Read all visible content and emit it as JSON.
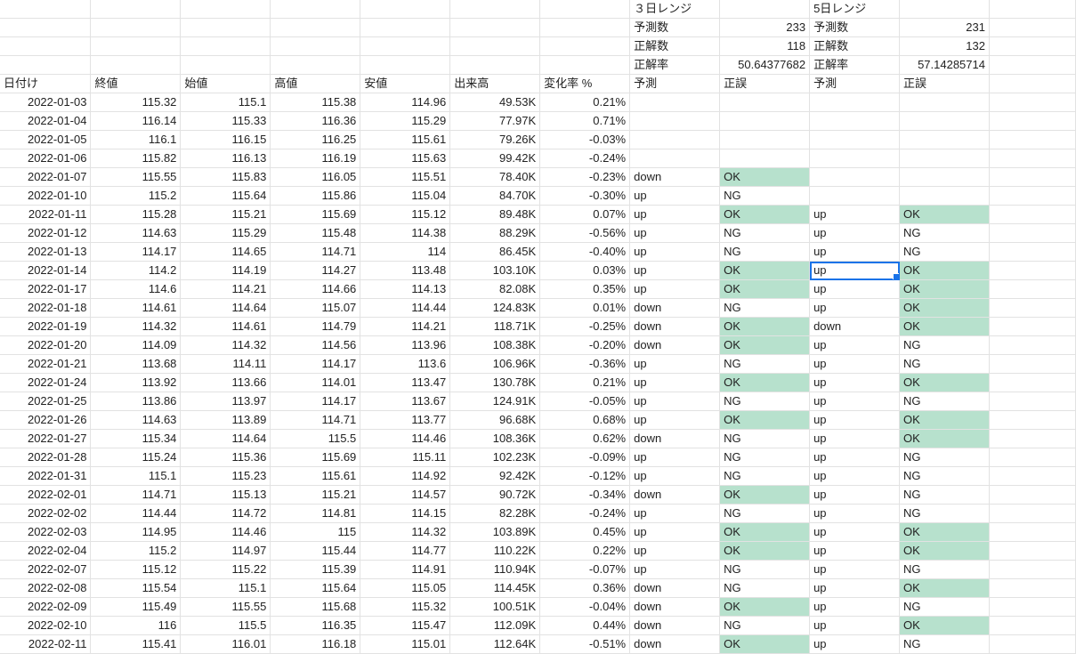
{
  "summary": {
    "range3_title": "３日レンジ",
    "range5_title": "5日レンジ",
    "pred_count_label": "予測数",
    "correct_count_label": "正解数",
    "accuracy_label": "正解率",
    "range3_pred_count": "233",
    "range3_correct_count": "118",
    "range3_accuracy": "50.64377682",
    "range5_pred_count": "231",
    "range5_correct_count": "132",
    "range5_accuracy": "57.14285714"
  },
  "headers": [
    "日付け",
    "終値",
    "始値",
    "高値",
    "安値",
    "出来高",
    "変化率 %",
    "予測",
    "正誤",
    "予測",
    "正誤"
  ],
  "rows": [
    [
      "2022-01-03",
      "115.32",
      "115.1",
      "115.38",
      "114.96",
      "49.53K",
      "0.21%",
      "",
      "",
      "",
      ""
    ],
    [
      "2022-01-04",
      "116.14",
      "115.33",
      "116.36",
      "115.29",
      "77.97K",
      "0.71%",
      "",
      "",
      "",
      ""
    ],
    [
      "2022-01-05",
      "116.1",
      "116.15",
      "116.25",
      "115.61",
      "79.26K",
      "-0.03%",
      "",
      "",
      "",
      ""
    ],
    [
      "2022-01-06",
      "115.82",
      "116.13",
      "116.19",
      "115.63",
      "99.42K",
      "-0.24%",
      "",
      "",
      "",
      ""
    ],
    [
      "2022-01-07",
      "115.55",
      "115.83",
      "116.05",
      "115.51",
      "78.40K",
      "-0.23%",
      "down",
      "OK",
      "",
      ""
    ],
    [
      "2022-01-10",
      "115.2",
      "115.64",
      "115.86",
      "115.04",
      "84.70K",
      "-0.30%",
      "up",
      "NG",
      "",
      ""
    ],
    [
      "2022-01-11",
      "115.28",
      "115.21",
      "115.69",
      "115.12",
      "89.48K",
      "0.07%",
      "up",
      "OK",
      "up",
      "OK"
    ],
    [
      "2022-01-12",
      "114.63",
      "115.29",
      "115.48",
      "114.38",
      "88.29K",
      "-0.56%",
      "up",
      "NG",
      "up",
      "NG"
    ],
    [
      "2022-01-13",
      "114.17",
      "114.65",
      "114.71",
      "114",
      "86.45K",
      "-0.40%",
      "up",
      "NG",
      "up",
      "NG"
    ],
    [
      "2022-01-14",
      "114.2",
      "114.19",
      "114.27",
      "113.48",
      "103.10K",
      "0.03%",
      "up",
      "OK",
      "up",
      "OK"
    ],
    [
      "2022-01-17",
      "114.6",
      "114.21",
      "114.66",
      "114.13",
      "82.08K",
      "0.35%",
      "up",
      "OK",
      "up",
      "OK"
    ],
    [
      "2022-01-18",
      "114.61",
      "114.64",
      "115.07",
      "114.44",
      "124.83K",
      "0.01%",
      "down",
      "NG",
      "up",
      "OK"
    ],
    [
      "2022-01-19",
      "114.32",
      "114.61",
      "114.79",
      "114.21",
      "118.71K",
      "-0.25%",
      "down",
      "OK",
      "down",
      "OK"
    ],
    [
      "2022-01-20",
      "114.09",
      "114.32",
      "114.56",
      "113.96",
      "108.38K",
      "-0.20%",
      "down",
      "OK",
      "up",
      "NG"
    ],
    [
      "2022-01-21",
      "113.68",
      "114.11",
      "114.17",
      "113.6",
      "106.96K",
      "-0.36%",
      "up",
      "NG",
      "up",
      "NG"
    ],
    [
      "2022-01-24",
      "113.92",
      "113.66",
      "114.01",
      "113.47",
      "130.78K",
      "0.21%",
      "up",
      "OK",
      "up",
      "OK"
    ],
    [
      "2022-01-25",
      "113.86",
      "113.97",
      "114.17",
      "113.67",
      "124.91K",
      "-0.05%",
      "up",
      "NG",
      "up",
      "NG"
    ],
    [
      "2022-01-26",
      "114.63",
      "113.89",
      "114.71",
      "113.77",
      "96.68K",
      "0.68%",
      "up",
      "OK",
      "up",
      "OK"
    ],
    [
      "2022-01-27",
      "115.34",
      "114.64",
      "115.5",
      "114.46",
      "108.36K",
      "0.62%",
      "down",
      "NG",
      "up",
      "OK"
    ],
    [
      "2022-01-28",
      "115.24",
      "115.36",
      "115.69",
      "115.11",
      "102.23K",
      "-0.09%",
      "up",
      "NG",
      "up",
      "NG"
    ],
    [
      "2022-01-31",
      "115.1",
      "115.23",
      "115.61",
      "114.92",
      "92.42K",
      "-0.12%",
      "up",
      "NG",
      "up",
      "NG"
    ],
    [
      "2022-02-01",
      "114.71",
      "115.13",
      "115.21",
      "114.57",
      "90.72K",
      "-0.34%",
      "down",
      "OK",
      "up",
      "NG"
    ],
    [
      "2022-02-02",
      "114.44",
      "114.72",
      "114.81",
      "114.15",
      "82.28K",
      "-0.24%",
      "up",
      "NG",
      "up",
      "NG"
    ],
    [
      "2022-02-03",
      "114.95",
      "114.46",
      "115",
      "114.32",
      "103.89K",
      "0.45%",
      "up",
      "OK",
      "up",
      "OK"
    ],
    [
      "2022-02-04",
      "115.2",
      "114.97",
      "115.44",
      "114.77",
      "110.22K",
      "0.22%",
      "up",
      "OK",
      "up",
      "OK"
    ],
    [
      "2022-02-07",
      "115.12",
      "115.22",
      "115.39",
      "114.91",
      "110.94K",
      "-0.07%",
      "up",
      "NG",
      "up",
      "NG"
    ],
    [
      "2022-02-08",
      "115.54",
      "115.1",
      "115.64",
      "115.05",
      "114.45K",
      "0.36%",
      "down",
      "NG",
      "up",
      "OK"
    ],
    [
      "2022-02-09",
      "115.49",
      "115.55",
      "115.68",
      "115.32",
      "100.51K",
      "-0.04%",
      "down",
      "OK",
      "up",
      "NG"
    ],
    [
      "2022-02-10",
      "116",
      "115.5",
      "116.35",
      "115.47",
      "112.09K",
      "0.44%",
      "down",
      "NG",
      "up",
      "OK"
    ],
    [
      "2022-02-11",
      "115.41",
      "116.01",
      "116.18",
      "115.01",
      "112.64K",
      "-0.51%",
      "down",
      "OK",
      "up",
      "NG"
    ]
  ],
  "colors": {
    "ok_fill": "#b7e1cd",
    "grid_line": "#e2e2e2",
    "selection": "#1a73e8"
  },
  "selected_cell": {
    "row": 9,
    "col": 9
  }
}
